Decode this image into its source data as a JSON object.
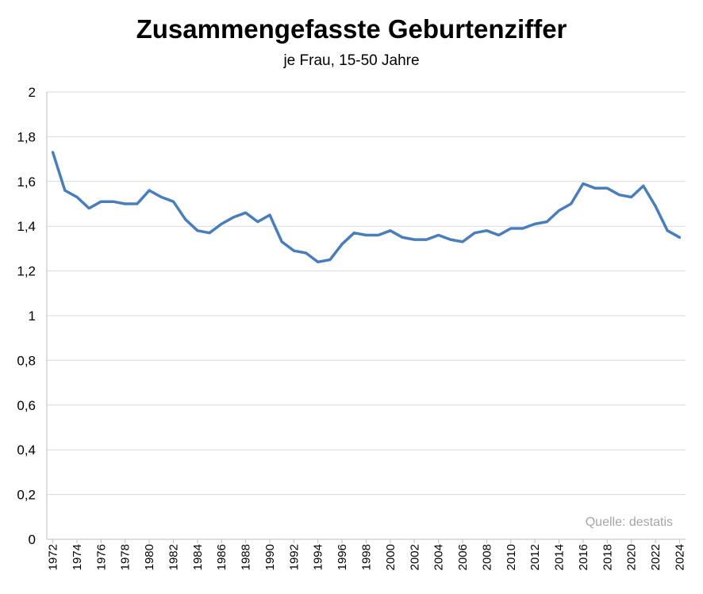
{
  "chart_data": {
    "type": "line",
    "title": "Zusammengefasste Geburtenziffer",
    "subtitle": "je Frau, 15-50 Jahre",
    "source": "Quelle: destatis",
    "xlabel": "",
    "ylabel": "",
    "ylim": [
      0,
      2
    ],
    "y_ticks": [
      "0",
      "0,2",
      "0,4",
      "0,6",
      "0,8",
      "1",
      "1,2",
      "1,4",
      "1,6",
      "1,8",
      "2"
    ],
    "x_tick_labels": [
      "1972",
      "1974",
      "1976",
      "1978",
      "1980",
      "1982",
      "1984",
      "1986",
      "1988",
      "1990",
      "1992",
      "1994",
      "1996",
      "1998",
      "2000",
      "2002",
      "2004",
      "2006",
      "2008",
      "2010",
      "2012",
      "2014",
      "2016",
      "2018",
      "2020",
      "2022",
      "2024"
    ],
    "grid": true,
    "legend": "none",
    "line_color": "#4a7ebb",
    "x": [
      1972,
      1973,
      1974,
      1975,
      1976,
      1977,
      1978,
      1979,
      1980,
      1981,
      1982,
      1983,
      1984,
      1985,
      1986,
      1987,
      1988,
      1989,
      1990,
      1991,
      1992,
      1993,
      1994,
      1995,
      1996,
      1997,
      1998,
      1999,
      2000,
      2001,
      2002,
      2003,
      2004,
      2005,
      2006,
      2007,
      2008,
      2009,
      2010,
      2011,
      2012,
      2013,
      2014,
      2015,
      2016,
      2017,
      2018,
      2019,
      2020,
      2021,
      2022,
      2023,
      2024
    ],
    "values": [
      1.73,
      1.56,
      1.53,
      1.48,
      1.51,
      1.51,
      1.5,
      1.5,
      1.56,
      1.53,
      1.51,
      1.43,
      1.38,
      1.37,
      1.41,
      1.44,
      1.46,
      1.42,
      1.45,
      1.33,
      1.29,
      1.28,
      1.24,
      1.25,
      1.32,
      1.37,
      1.36,
      1.36,
      1.38,
      1.35,
      1.34,
      1.34,
      1.36,
      1.34,
      1.33,
      1.37,
      1.38,
      1.36,
      1.39,
      1.39,
      1.41,
      1.42,
      1.47,
      1.5,
      1.59,
      1.57,
      1.57,
      1.54,
      1.53,
      1.58,
      1.49,
      1.38,
      1.35
    ]
  }
}
